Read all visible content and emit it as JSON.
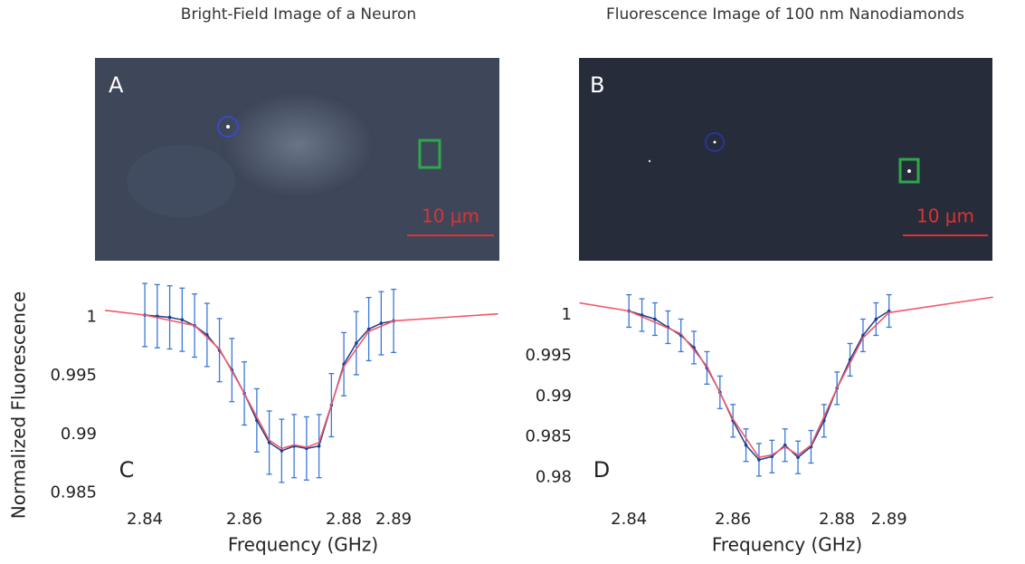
{
  "panels": [
    {
      "title": "Bright-Field Image of a Neuron",
      "letter": "A",
      "scale_label": "10 μm"
    },
    {
      "title": "Fluorescence Image of 100 nm Nanodiamonds",
      "letter": "B",
      "scale_label": "10 μm"
    }
  ],
  "chart_data": [
    {
      "type": "errorbar",
      "letter": "C",
      "x_label": "Frequency (GHz)",
      "y_label": "Normalized Fluorescence",
      "x": [
        2.84,
        2.8425,
        2.845,
        2.8475,
        2.85,
        2.8525,
        2.855,
        2.8575,
        2.86,
        2.8625,
        2.865,
        2.8675,
        2.87,
        2.8725,
        2.875,
        2.8775,
        2.88,
        2.8825,
        2.885,
        2.8875,
        2.89
      ],
      "values": [
        1.0002,
        1.0001,
        1.0,
        0.9998,
        0.9993,
        0.9985,
        0.9972,
        0.9955,
        0.9935,
        0.9912,
        0.9893,
        0.9886,
        0.989,
        0.9888,
        0.989,
        0.9925,
        0.996,
        0.9978,
        0.999,
        0.9995,
        0.9997
      ],
      "errors": [
        0.0027,
        0.0027,
        0.0027,
        0.0027,
        0.0027,
        0.0027,
        0.0027,
        0.0027,
        0.0027,
        0.0027,
        0.0027,
        0.0027,
        0.0027,
        0.0027,
        0.0027,
        0.0027,
        0.0027,
        0.0027,
        0.0027,
        0.0027,
        0.0027
      ],
      "color": "#3a78d8",
      "fit": {
        "color": "#f05a6a",
        "x": [
          2.832,
          2.84,
          2.85,
          2.855,
          2.86,
          2.865,
          2.8675,
          2.87,
          2.8725,
          2.875,
          2.88,
          2.885,
          2.89,
          2.911
        ],
        "values": [
          1.0006,
          1.0002,
          0.9993,
          0.9973,
          0.9935,
          0.9895,
          0.9888,
          0.9891,
          0.9889,
          0.9893,
          0.9958,
          0.9988,
          0.9997,
          1.0003
        ]
      },
      "xlim": [
        2.8318,
        2.9118
      ],
      "ylim": [
        0.9838,
        1.0043
      ],
      "xticks": [
        2.84,
        2.86,
        2.88,
        2.89
      ],
      "yticks": [
        0.985,
        0.99,
        0.995,
        1
      ]
    },
    {
      "type": "errorbar",
      "letter": "D",
      "x_label": "Frequency (GHz)",
      "x": [
        2.84,
        2.8425,
        2.845,
        2.8475,
        2.85,
        2.8525,
        2.855,
        2.8575,
        2.86,
        2.8625,
        2.865,
        2.8675,
        2.87,
        2.8725,
        2.875,
        2.8775,
        2.88,
        2.8825,
        2.885,
        2.8875,
        2.89
      ],
      "values": [
        1.0005,
        1.0,
        0.9995,
        0.9985,
        0.9975,
        0.996,
        0.9935,
        0.9905,
        0.987,
        0.984,
        0.9822,
        0.9826,
        0.984,
        0.9825,
        0.9838,
        0.987,
        0.991,
        0.9945,
        0.9975,
        0.9995,
        1.0005
      ],
      "errors": [
        0.002,
        0.002,
        0.002,
        0.002,
        0.002,
        0.002,
        0.002,
        0.002,
        0.002,
        0.002,
        0.002,
        0.002,
        0.002,
        0.002,
        0.002,
        0.002,
        0.002,
        0.002,
        0.002,
        0.002,
        0.002
      ],
      "color": "#3a78d8",
      "fit": {
        "color": "#f05a6a",
        "x": [
          2.8305,
          2.84,
          2.85,
          2.855,
          2.86,
          2.865,
          2.8675,
          2.87,
          2.8725,
          2.875,
          2.88,
          2.885,
          2.89,
          2.91
        ],
        "values": [
          1.0015,
          1.0005,
          0.9977,
          0.9937,
          0.9872,
          0.9825,
          0.9828,
          0.9838,
          0.9828,
          0.984,
          0.991,
          0.9972,
          1.0003,
          1.0022
        ]
      },
      "xlim": [
        2.8304,
        2.9104
      ],
      "ylim": [
        0.9764,
        1.0059
      ],
      "xticks": [
        2.84,
        2.86,
        2.88,
        2.89
      ],
      "yticks": [
        0.98,
        0.985,
        0.99,
        0.995,
        1
      ]
    }
  ]
}
